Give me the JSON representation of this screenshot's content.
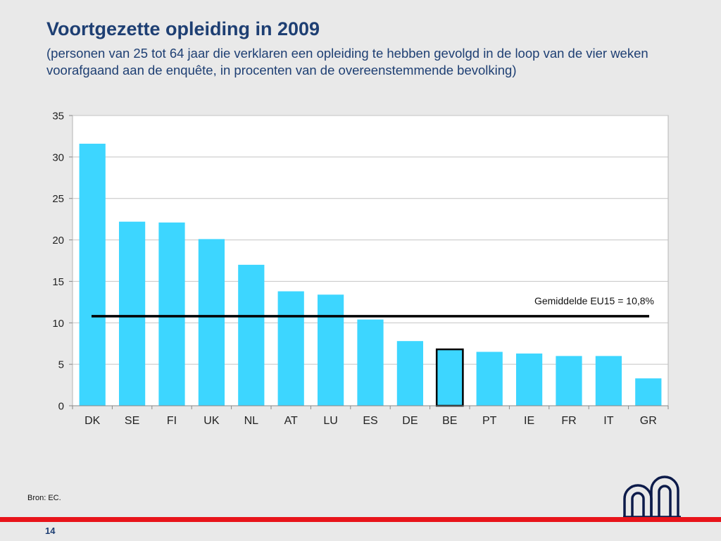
{
  "slide": {
    "title": "Voortgezette opleiding in 2009",
    "subtitle": "(personen van 25 tot 64 jaar die verklaren een opleiding te hebben gevolgd in de loop van de vier weken voorafgaand aan de enquête, in procenten van de overeenstemmende bevolking)",
    "source": "Bron: EC.",
    "page_number": "14"
  },
  "chart_data": {
    "type": "bar",
    "title": "",
    "xlabel": "",
    "ylabel": "",
    "categories": [
      "DK",
      "SE",
      "FI",
      "UK",
      "NL",
      "AT",
      "LU",
      "ES",
      "DE",
      "BE",
      "PT",
      "IE",
      "FR",
      "IT",
      "GR"
    ],
    "values": [
      31.6,
      22.2,
      22.1,
      20.1,
      17.0,
      13.8,
      13.4,
      10.4,
      7.8,
      6.8,
      6.5,
      6.3,
      6.0,
      6.0,
      3.3
    ],
    "ylim": [
      0,
      35
    ],
    "yticks": [
      0,
      5,
      10,
      15,
      20,
      25,
      30,
      35
    ],
    "grid": true,
    "legend": "none",
    "bar_color": "#3dd6ff",
    "highlight": {
      "category": "BE",
      "fill": "#3dd6ff",
      "outline": "#000000"
    },
    "reference_line": {
      "value": 10.8,
      "label": "Gemiddelde EU15 = 10,8%",
      "color": "#000000"
    }
  }
}
